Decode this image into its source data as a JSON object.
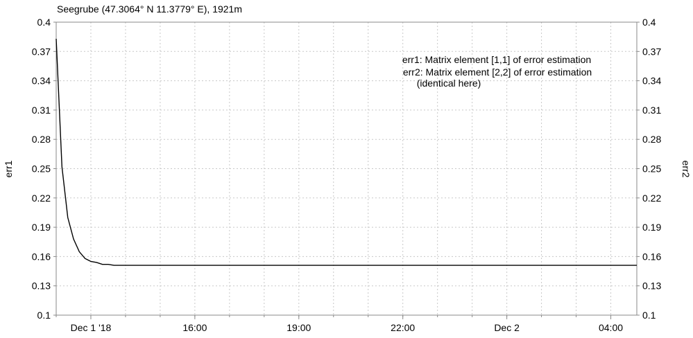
{
  "chart_data": {
    "type": "line",
    "title": "Seegrube (47.3064° N 11.3779° E), 1921m",
    "ylabel_left": "err1",
    "ylabel_right": "err2",
    "ylim": [
      0.1,
      0.4
    ],
    "y_ticks": [
      "0.1",
      "0.13",
      "0.16",
      "0.19",
      "0.22",
      "0.25",
      "0.28",
      "0.31",
      "0.34",
      "0.37",
      "0.4"
    ],
    "x_range": [
      "2018-12-01 12:00",
      "2018-12-02 04:45"
    ],
    "x_ticks": [
      {
        "label": "Dec 1 '18",
        "x": "2018-12-01 13:00"
      },
      {
        "label": "16:00",
        "x": "2018-12-01 16:00"
      },
      {
        "label": "19:00",
        "x": "2018-12-01 19:00"
      },
      {
        "label": "22:00",
        "x": "2018-12-01 22:00"
      },
      {
        "label": "Dec 2",
        "x": "2018-12-02 01:00"
      },
      {
        "label": "04:00",
        "x": "2018-12-02 04:00"
      }
    ],
    "grid": true,
    "annotations": [
      "err1: Matrix element [1,1] of error estimation",
      "err2: Matrix element [2,2] of error estimation",
      "(identical here)"
    ],
    "series": [
      {
        "color": "#000000",
        "points": [
          [
            "2018-12-01 12:00",
            0.383
          ],
          [
            "2018-12-01 12:10",
            0.252
          ],
          [
            "2018-12-01 12:20",
            0.2
          ],
          [
            "2018-12-01 12:30",
            0.178
          ],
          [
            "2018-12-01 12:40",
            0.165
          ],
          [
            "2018-12-01 12:50",
            0.158
          ],
          [
            "2018-12-01 13:00",
            0.155
          ],
          [
            "2018-12-01 13:10",
            0.154
          ],
          [
            "2018-12-01 13:20",
            0.152
          ],
          [
            "2018-12-01 13:30",
            0.152
          ],
          [
            "2018-12-01 13:40",
            0.151
          ],
          [
            "2018-12-01 14:00",
            0.151
          ],
          [
            "2018-12-02 04:45",
            0.151
          ]
        ]
      }
    ]
  }
}
